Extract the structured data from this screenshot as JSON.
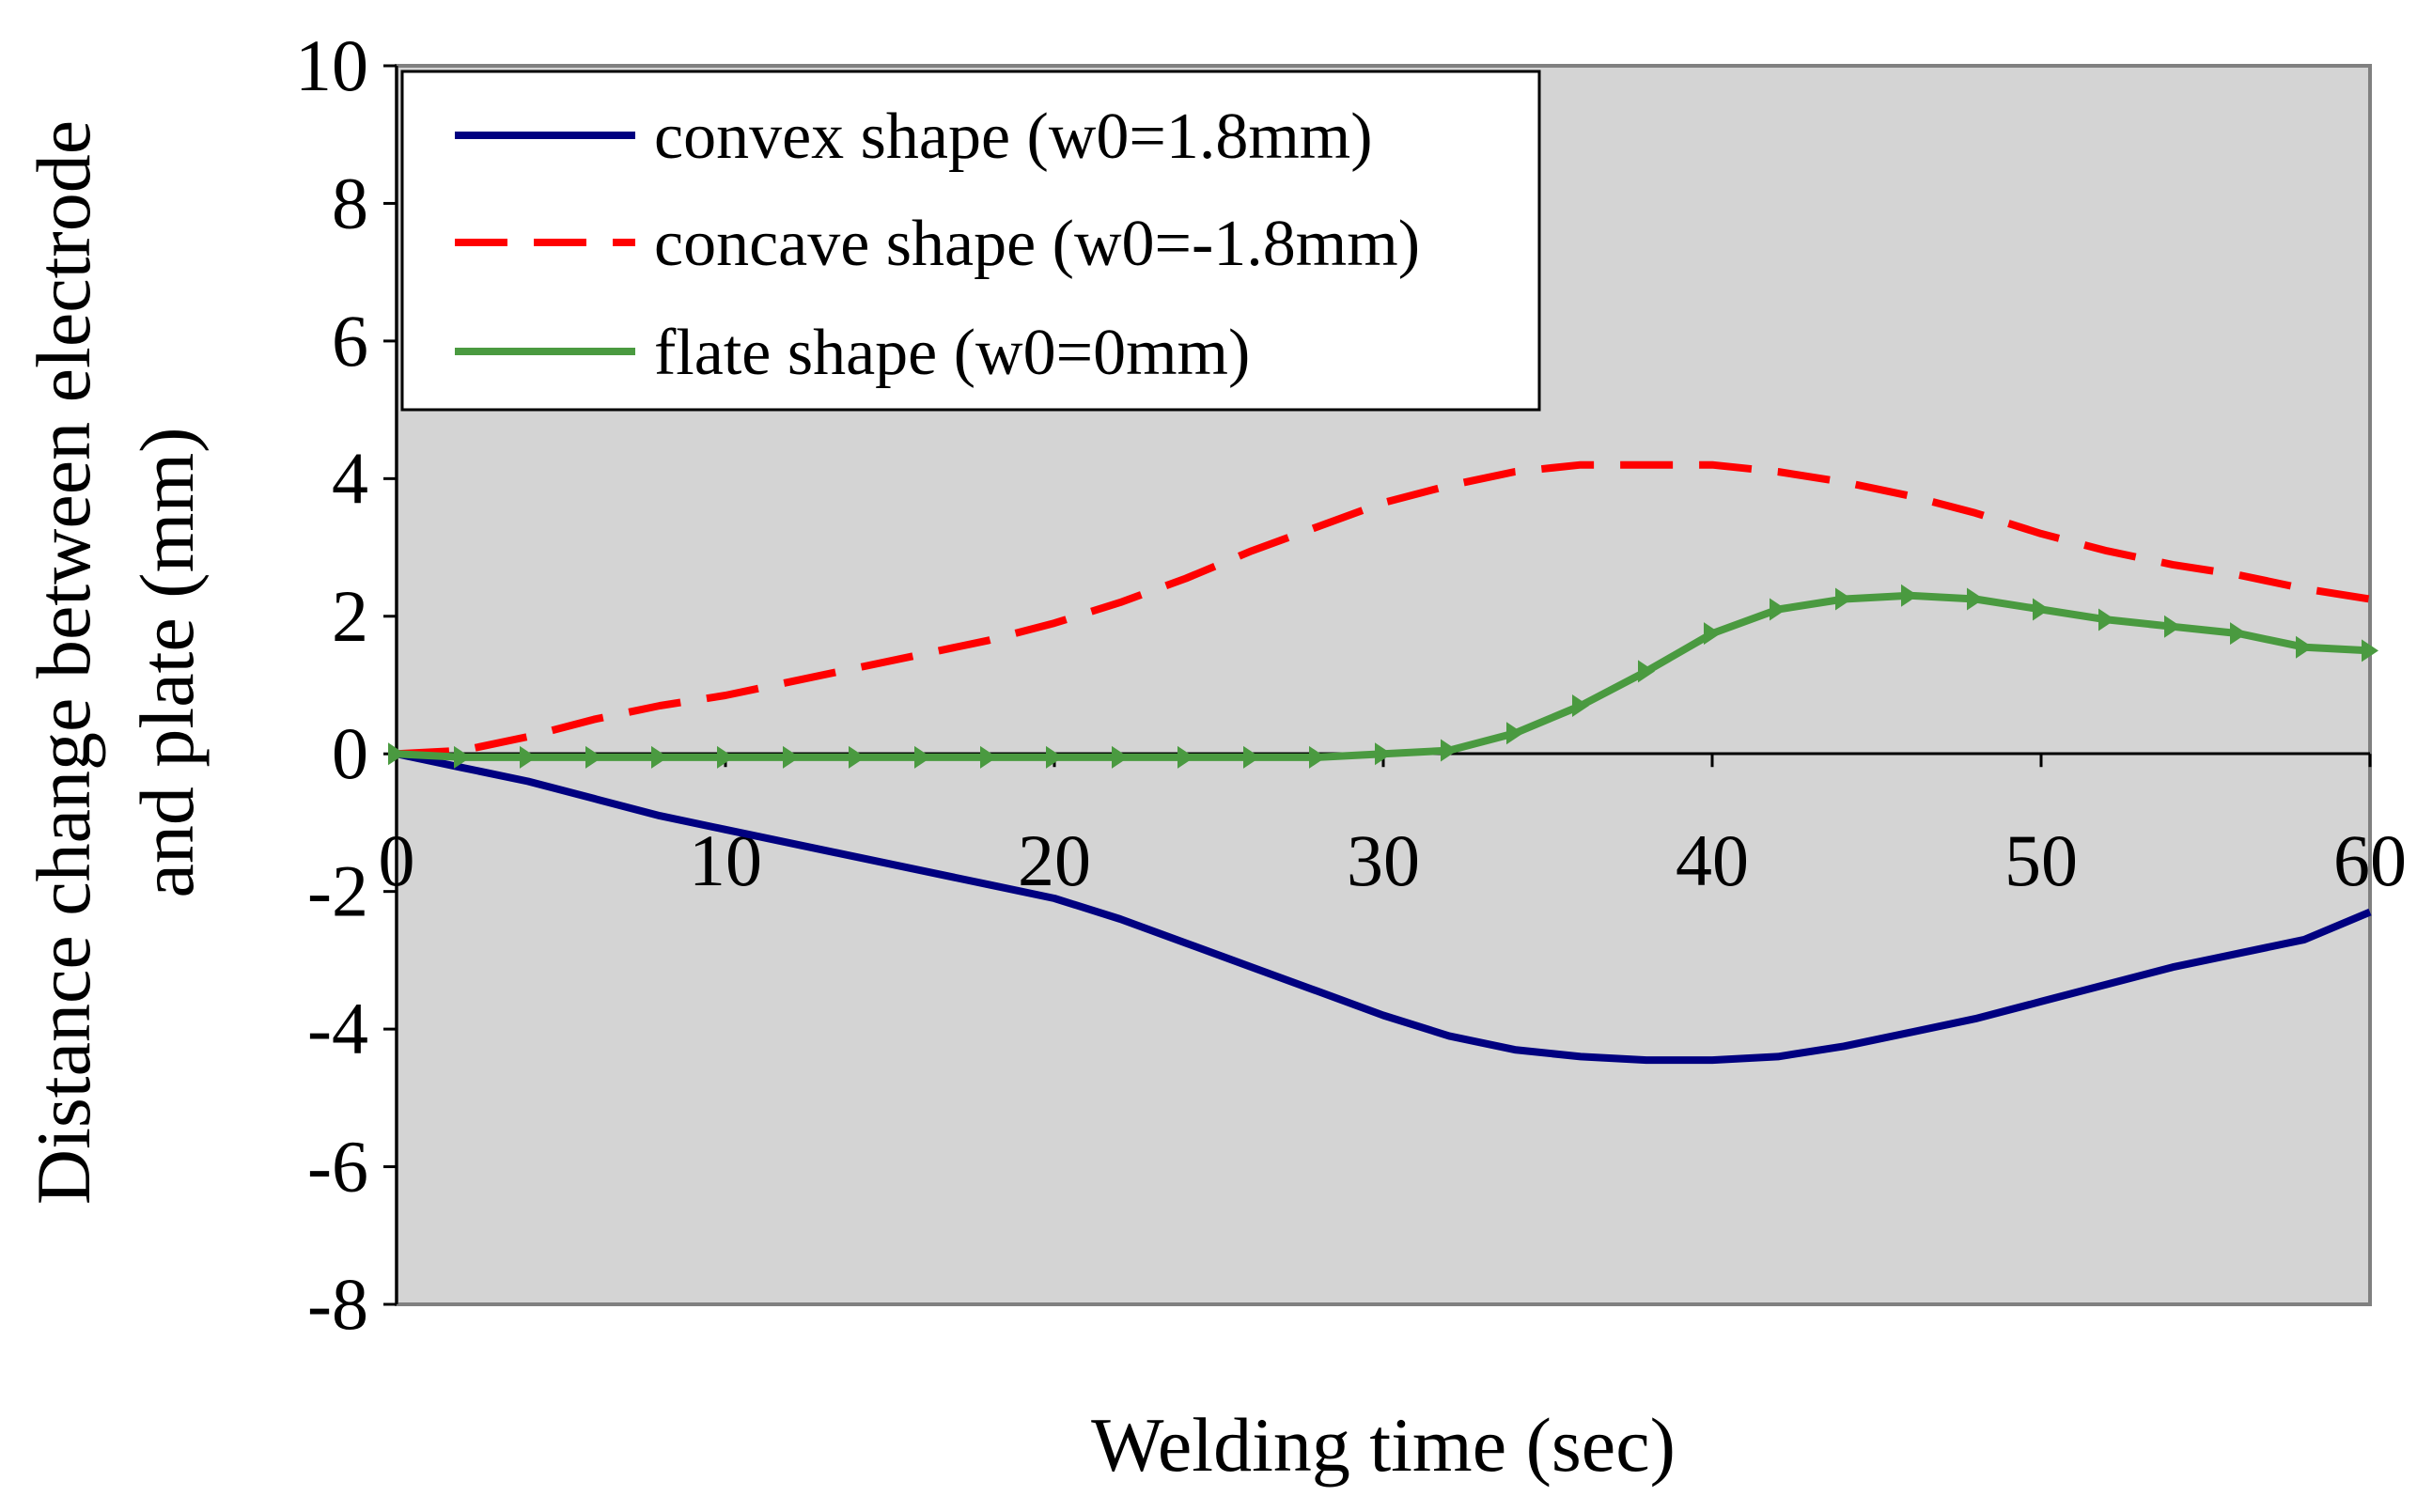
{
  "chart_data": {
    "type": "line",
    "title": "",
    "xlabel": "Welding time (sec)",
    "ylabel_line1": "Distance change between electrode",
    "ylabel_line2": "and plate (mm)",
    "xlim": [
      0,
      60
    ],
    "ylim": [
      -8,
      10
    ],
    "xticks": [
      0,
      10,
      20,
      30,
      40,
      50,
      60
    ],
    "yticks": [
      10,
      8,
      6,
      4,
      2,
      0,
      -2,
      -4,
      -6,
      -8
    ],
    "xtick_labels": [
      "0",
      "10",
      "20",
      "30",
      "40",
      "50",
      "60"
    ],
    "ytick_labels": [
      "10",
      "8",
      "6",
      "4",
      "2",
      "0",
      "-2",
      "-4",
      "-6",
      "-8"
    ],
    "grid": false,
    "plot_background": "#d4d4d4",
    "legend_position": "top-left",
    "series": [
      {
        "name": "convex shape (w0=1.8mm)",
        "color": "#000080",
        "style": "solid",
        "x": [
          0,
          2,
          4,
          6,
          8,
          10,
          12,
          14,
          16,
          18,
          20,
          22,
          24,
          26,
          28,
          30,
          32,
          34,
          36,
          38,
          40,
          42,
          44,
          46,
          48,
          50,
          52,
          54,
          56,
          58,
          60
        ],
        "y": [
          0,
          -0.2,
          -0.4,
          -0.65,
          -0.9,
          -1.1,
          -1.3,
          -1.5,
          -1.7,
          -1.9,
          -2.1,
          -2.4,
          -2.75,
          -3.1,
          -3.45,
          -3.8,
          -4.1,
          -4.3,
          -4.4,
          -4.45,
          -4.45,
          -4.4,
          -4.25,
          -4.05,
          -3.85,
          -3.6,
          -3.35,
          -3.1,
          -2.9,
          -2.7,
          -2.3
        ]
      },
      {
        "name": "concave shape (w0=-1.8mm)",
        "color": "#ff0000",
        "style": "dashed",
        "x": [
          0,
          2,
          4,
          6,
          8,
          10,
          12,
          14,
          16,
          18,
          20,
          22,
          24,
          26,
          28,
          30,
          32,
          34,
          36,
          38,
          40,
          42,
          44,
          46,
          48,
          50,
          52,
          54,
          56,
          58,
          60
        ],
        "y": [
          0,
          0.05,
          0.25,
          0.5,
          0.7,
          0.85,
          1.05,
          1.25,
          1.45,
          1.65,
          1.9,
          2.2,
          2.55,
          2.95,
          3.3,
          3.65,
          3.9,
          4.1,
          4.2,
          4.2,
          4.2,
          4.1,
          3.95,
          3.75,
          3.5,
          3.2,
          2.95,
          2.75,
          2.6,
          2.4,
          2.25
        ]
      },
      {
        "name": "flate shape (w0=0mm)",
        "color": "#4a9a40",
        "style": "solid-markers",
        "x": [
          0,
          2,
          4,
          6,
          8,
          10,
          12,
          14,
          16,
          18,
          20,
          22,
          24,
          26,
          28,
          30,
          32,
          34,
          36,
          38,
          40,
          42,
          44,
          46,
          48,
          50,
          52,
          54,
          56,
          58,
          60
        ],
        "y": [
          0,
          -0.05,
          -0.05,
          -0.05,
          -0.05,
          -0.05,
          -0.05,
          -0.05,
          -0.05,
          -0.05,
          -0.05,
          -0.05,
          -0.05,
          -0.05,
          -0.05,
          0,
          0.05,
          0.3,
          0.7,
          1.2,
          1.75,
          2.1,
          2.25,
          2.3,
          2.25,
          2.1,
          1.95,
          1.85,
          1.75,
          1.55,
          1.5
        ]
      }
    ]
  }
}
